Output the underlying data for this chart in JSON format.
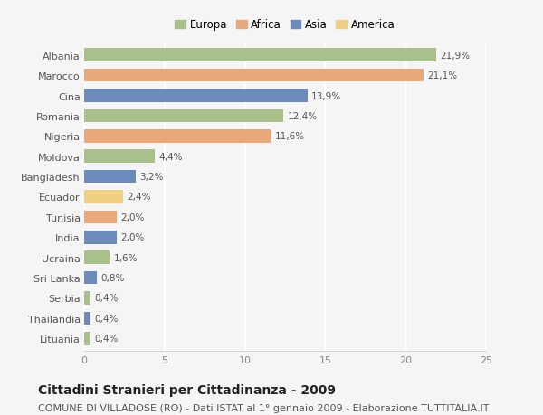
{
  "countries": [
    "Albania",
    "Marocco",
    "Cina",
    "Romania",
    "Nigeria",
    "Moldova",
    "Bangladesh",
    "Ecuador",
    "Tunisia",
    "India",
    "Ucraina",
    "Sri Lanka",
    "Serbia",
    "Thailandia",
    "Lituania"
  ],
  "values": [
    21.9,
    21.1,
    13.9,
    12.4,
    11.6,
    4.4,
    3.2,
    2.4,
    2.0,
    2.0,
    1.6,
    0.8,
    0.4,
    0.4,
    0.4
  ],
  "labels": [
    "21,9%",
    "21,1%",
    "13,9%",
    "12,4%",
    "11,6%",
    "4,4%",
    "3,2%",
    "2,4%",
    "2,0%",
    "2,0%",
    "1,6%",
    "0,8%",
    "0,4%",
    "0,4%",
    "0,4%"
  ],
  "continents": [
    "Europa",
    "Africa",
    "Asia",
    "Europa",
    "Africa",
    "Europa",
    "Asia",
    "America",
    "Africa",
    "Asia",
    "Europa",
    "Asia",
    "Europa",
    "Asia",
    "Europa"
  ],
  "continent_colors": {
    "Europa": "#a8c08a",
    "Africa": "#e8a87c",
    "Asia": "#6b8cba",
    "America": "#f0d080"
  },
  "legend_order": [
    "Europa",
    "Africa",
    "Asia",
    "America"
  ],
  "xlim": [
    0,
    25
  ],
  "xticks": [
    0,
    5,
    10,
    15,
    20,
    25
  ],
  "title": "Cittadini Stranieri per Cittadinanza - 2009",
  "subtitle": "COMUNE DI VILLADOSE (RO) - Dati ISTAT al 1° gennaio 2009 - Elaborazione TUTTITALIA.IT",
  "title_fontsize": 10,
  "subtitle_fontsize": 8,
  "label_fontsize": 7.5,
  "tick_fontsize": 8,
  "background_color": "#f5f5f5",
  "bar_height": 0.65,
  "grid_color": "#ffffff",
  "legend_fontsize": 8.5
}
